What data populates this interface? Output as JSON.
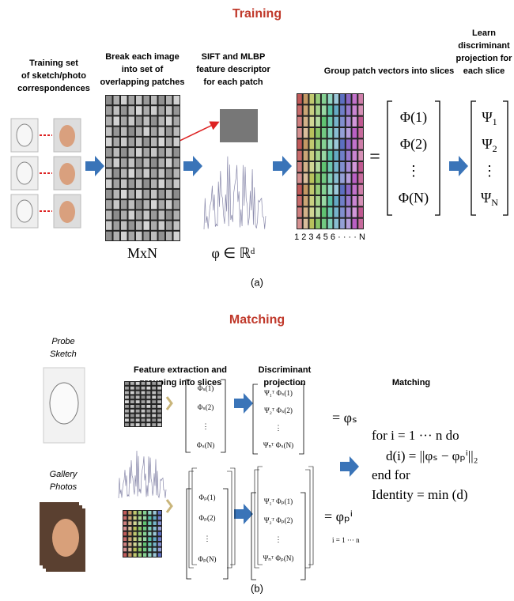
{
  "training": {
    "title": "Training",
    "steps": [
      [
        "Training set",
        "of sketch/photo",
        "correspondences"
      ],
      [
        "Break  each image",
        "into set of",
        "overlapping patches"
      ],
      [
        "SIFT and MLBP",
        "feature descriptor",
        "for  each patch"
      ],
      [
        "Group patch vectors  into slices"
      ],
      [
        "Learn",
        "discriminant",
        "projection for",
        "each slice"
      ]
    ],
    "patch_size": "MxN",
    "descriptor": "φ ∈ ℝᵈ",
    "slice_index": "1 2 3 4 5 6 · · · · N",
    "equals": "=",
    "phi_vector": [
      "Φ(1)",
      "Φ(2)",
      "⋮",
      "Φ(N)"
    ],
    "psi_vector": [
      {
        "base": "Ψ",
        "sub": "1"
      },
      {
        "base": "Ψ",
        "sub": "2"
      },
      {
        "base": "⋮",
        "sub": ""
      },
      {
        "base": "Ψ",
        "sub": "N"
      }
    ],
    "caption": "(a)"
  },
  "matching": {
    "title": "Matching",
    "probe_label": [
      "Probe",
      "Sketch"
    ],
    "gallery_label": [
      "Gallery",
      "Photos"
    ],
    "steps": [
      [
        "Feature extraction and",
        "grouping into slices"
      ],
      [
        "Discriminant",
        "projection"
      ],
      [
        "Matching"
      ]
    ],
    "probe_vector": [
      "Φₛ(1)",
      "Φₛ(2)",
      "⋮",
      "Φₛ(N)"
    ],
    "probe_projection": [
      "Ψ₁ᵀ Φₛ(1)",
      "Ψ₂ᵀ Φₛ(2)",
      "⋮",
      "Ψₙᵀ Φₛ(N)"
    ],
    "probe_result": "= φₛ",
    "gallery_vector": [
      "Φₚ(1)",
      "Φₚ(2)",
      "⋮",
      "Φₚ(N)"
    ],
    "gallery_projection": [
      "Ψ₁ᵀ Φₚ(1)",
      "Ψ₂ᵀ Φₚ(2)",
      "⋮",
      "Ψₙᵀ Φₚ(N)"
    ],
    "gallery_result": "= φₚⁱ",
    "gallery_range": "i = 1 ··· n",
    "algorithm": [
      "for i = 1 ··· n do",
      "d(i) = ||φₛ − φₚⁱ||₂",
      "end for",
      "Identity = min (d)"
    ],
    "caption": "(b)"
  }
}
